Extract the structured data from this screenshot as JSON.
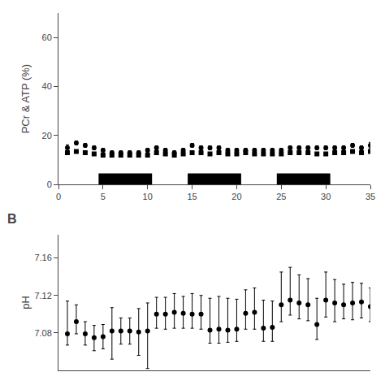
{
  "chart_data": [
    {
      "type": "scatter",
      "ylabel": "PCr & ATP (%)",
      "xlim": [
        0,
        35
      ],
      "ylim": [
        0,
        70
      ],
      "xticks": [
        0,
        5,
        10,
        15,
        20,
        25,
        30,
        35
      ],
      "yticks": [
        0,
        20,
        40,
        60
      ],
      "grid": false,
      "x": [
        1,
        2,
        3,
        4,
        5,
        6,
        7,
        8,
        9,
        10,
        11,
        12,
        13,
        14,
        15,
        16,
        17,
        18,
        19,
        20,
        21,
        22,
        23,
        24,
        25,
        26,
        27,
        28,
        29,
        30,
        31,
        32,
        33,
        34,
        35
      ],
      "series": [
        {
          "marker": "circle",
          "color": "#000000",
          "values": [
            15,
            17,
            16,
            15,
            14,
            13,
            13,
            13,
            13,
            14,
            15,
            14,
            13,
            14,
            16,
            15,
            15,
            15,
            14,
            14,
            14,
            14,
            14,
            14,
            14,
            15,
            15,
            15,
            15,
            15,
            15,
            15,
            16,
            15,
            16
          ],
          "errors": [
            1.2,
            0.8,
            0.8,
            0.8,
            0.8,
            0.8,
            0.8,
            0.8,
            0.8,
            0.8,
            0.8,
            0.8,
            0.8,
            0.8,
            0.8,
            0.8,
            0.8,
            0.8,
            0.8,
            0.8,
            0.8,
            0.8,
            0.8,
            0.8,
            0.8,
            0.8,
            0.8,
            0.8,
            0.8,
            0.8,
            0.8,
            0.8,
            0.8,
            0.8,
            1.2
          ]
        },
        {
          "marker": "square",
          "color": "#000000",
          "values": [
            13,
            13.5,
            13,
            12.5,
            12,
            12,
            12,
            12,
            12,
            12,
            13,
            12.5,
            12,
            12.5,
            13,
            13,
            12.5,
            13,
            12.5,
            12.5,
            13,
            12.5,
            12.5,
            12.5,
            12.5,
            13,
            13,
            13,
            12.5,
            12.5,
            13,
            13,
            13.5,
            13,
            13.5
          ],
          "errors": [
            0.5,
            0.5,
            0.5,
            0.5,
            0.5,
            0.5,
            0.5,
            0.5,
            0.5,
            0.5,
            0.5,
            0.5,
            0.5,
            0.5,
            0.5,
            0.5,
            0.5,
            0.5,
            0.5,
            0.5,
            0.5,
            0.5,
            0.5,
            0.5,
            0.5,
            0.5,
            0.5,
            0.5,
            0.5,
            0.5,
            0.5,
            0.5,
            0.5,
            0.5,
            0.5
          ]
        }
      ],
      "blocks": [
        [
          4.5,
          10.5
        ],
        [
          14.5,
          20.5
        ],
        [
          24.5,
          30.5
        ]
      ],
      "block_y": 0,
      "block_height": 4.5,
      "block_color": "#000000"
    },
    {
      "type": "scatter",
      "title": "B",
      "ylabel": "pH",
      "xlim": [
        0,
        35
      ],
      "ylim": [
        7.04,
        7.185
      ],
      "yticks": [
        7.08,
        7.12,
        7.16
      ],
      "tick_labels": "y",
      "grid": false,
      "x": [
        1,
        2,
        3,
        4,
        5,
        6,
        7,
        8,
        9,
        10,
        11,
        12,
        13,
        14,
        15,
        16,
        17,
        18,
        19,
        20,
        21,
        22,
        23,
        24,
        25,
        26,
        27,
        28,
        29,
        30,
        31,
        32,
        33,
        34,
        35
      ],
      "series": [
        {
          "marker": "circle",
          "color": "#000000",
          "values": [
            7.079,
            7.092,
            7.079,
            7.075,
            7.076,
            7.082,
            7.082,
            7.082,
            7.081,
            7.082,
            7.1,
            7.1,
            7.102,
            7.101,
            7.1,
            7.1,
            7.083,
            7.084,
            7.083,
            7.084,
            7.101,
            7.102,
            7.085,
            7.086,
            7.11,
            7.115,
            7.112,
            7.11,
            7.089,
            7.115,
            7.112,
            7.11,
            7.112,
            7.113,
            7.108
          ],
          "errors_minus": [
            0.012,
            0.013,
            0.012,
            0.014,
            0.013,
            0.03,
            0.014,
            0.014,
            0.025,
            0.04,
            0.015,
            0.016,
            0.017,
            0.016,
            0.015,
            0.016,
            0.014,
            0.015,
            0.013,
            0.013,
            0.017,
            0.018,
            0.014,
            0.015,
            0.018,
            0.016,
            0.017,
            0.017,
            0.016,
            0.018,
            0.02,
            0.015,
            0.018,
            0.017,
            0.016
          ],
          "errors_plus": [
            0.035,
            0.018,
            0.013,
            0.013,
            0.013,
            0.025,
            0.014,
            0.014,
            0.025,
            0.03,
            0.018,
            0.018,
            0.02,
            0.018,
            0.022,
            0.02,
            0.034,
            0.035,
            0.034,
            0.032,
            0.025,
            0.026,
            0.03,
            0.028,
            0.035,
            0.035,
            0.03,
            0.028,
            0.028,
            0.03,
            0.025,
            0.022,
            0.022,
            0.02,
            0.02
          ]
        }
      ]
    }
  ]
}
